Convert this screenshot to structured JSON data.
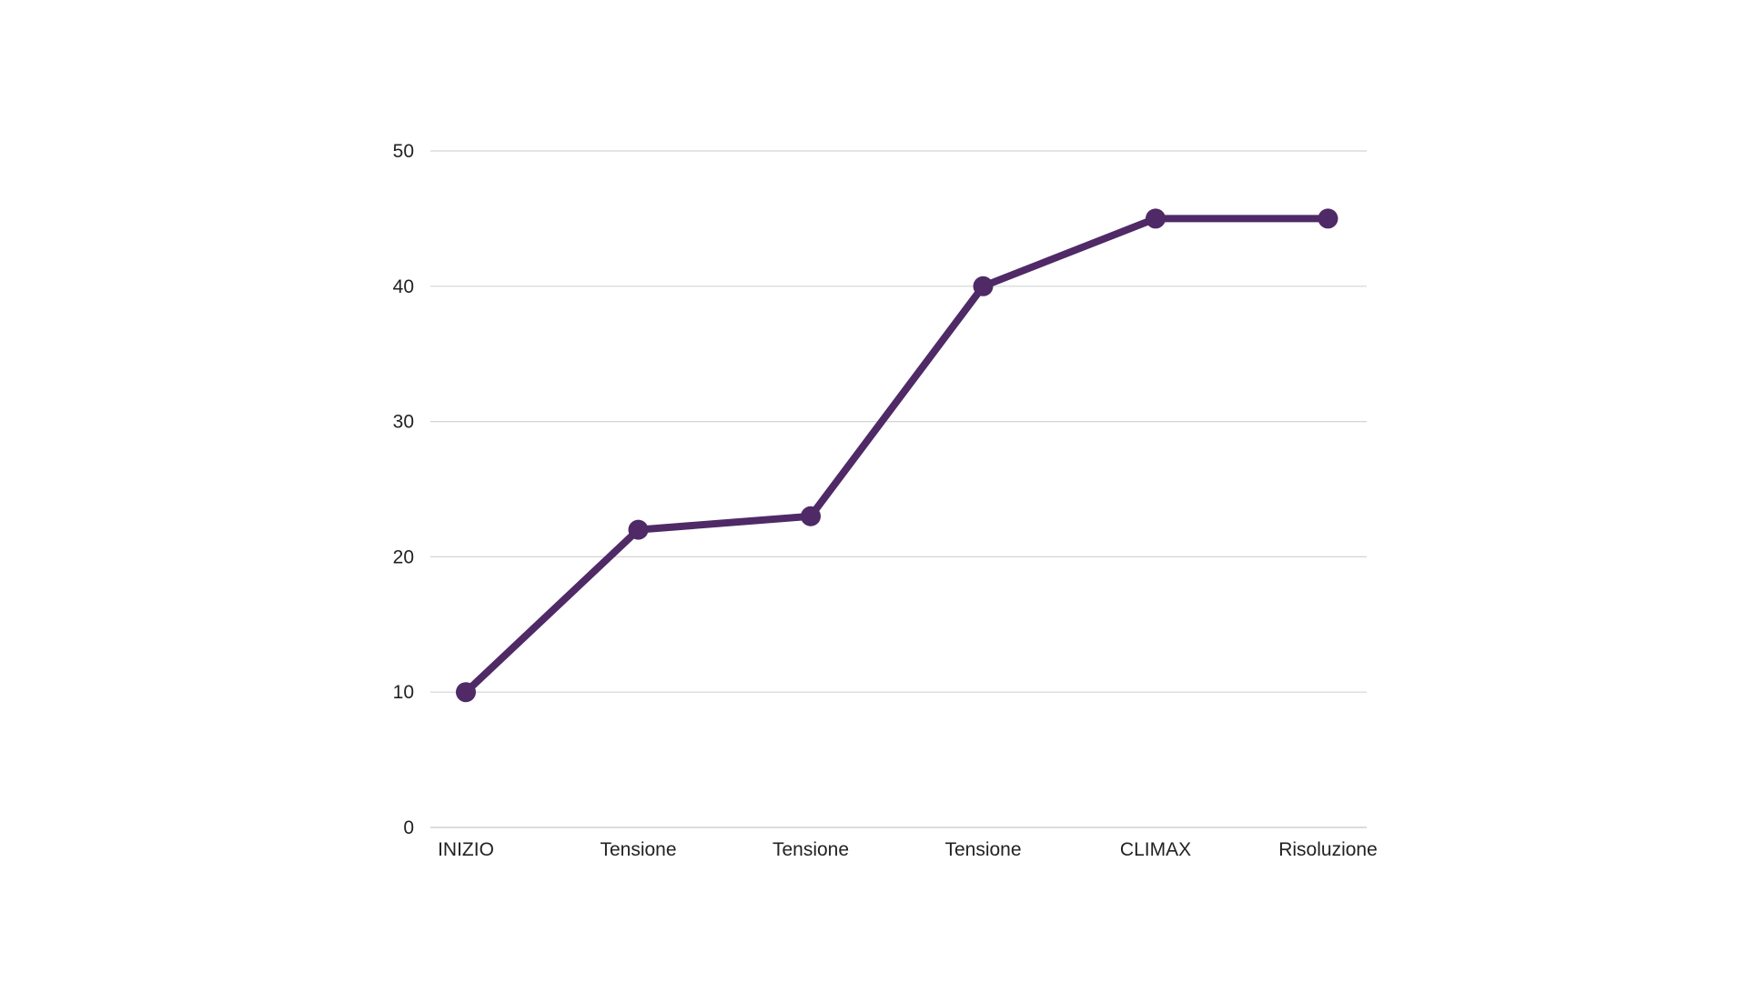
{
  "chart_data": {
    "type": "line",
    "title": "",
    "xlabel": "",
    "ylabel": "",
    "categories": [
      "INIZIO",
      "Tensione",
      "Tensione",
      "Tensione",
      "CLIMAX",
      "Risoluzione"
    ],
    "series": [
      {
        "values": [
          10,
          22,
          23,
          40,
          45,
          45
        ],
        "color": "#4f2a66"
      }
    ],
    "ylim": [
      0,
      50
    ],
    "yticks": [
      0,
      10,
      20,
      30,
      40,
      50
    ],
    "grid": true,
    "legend": "none",
    "markers": true
  }
}
